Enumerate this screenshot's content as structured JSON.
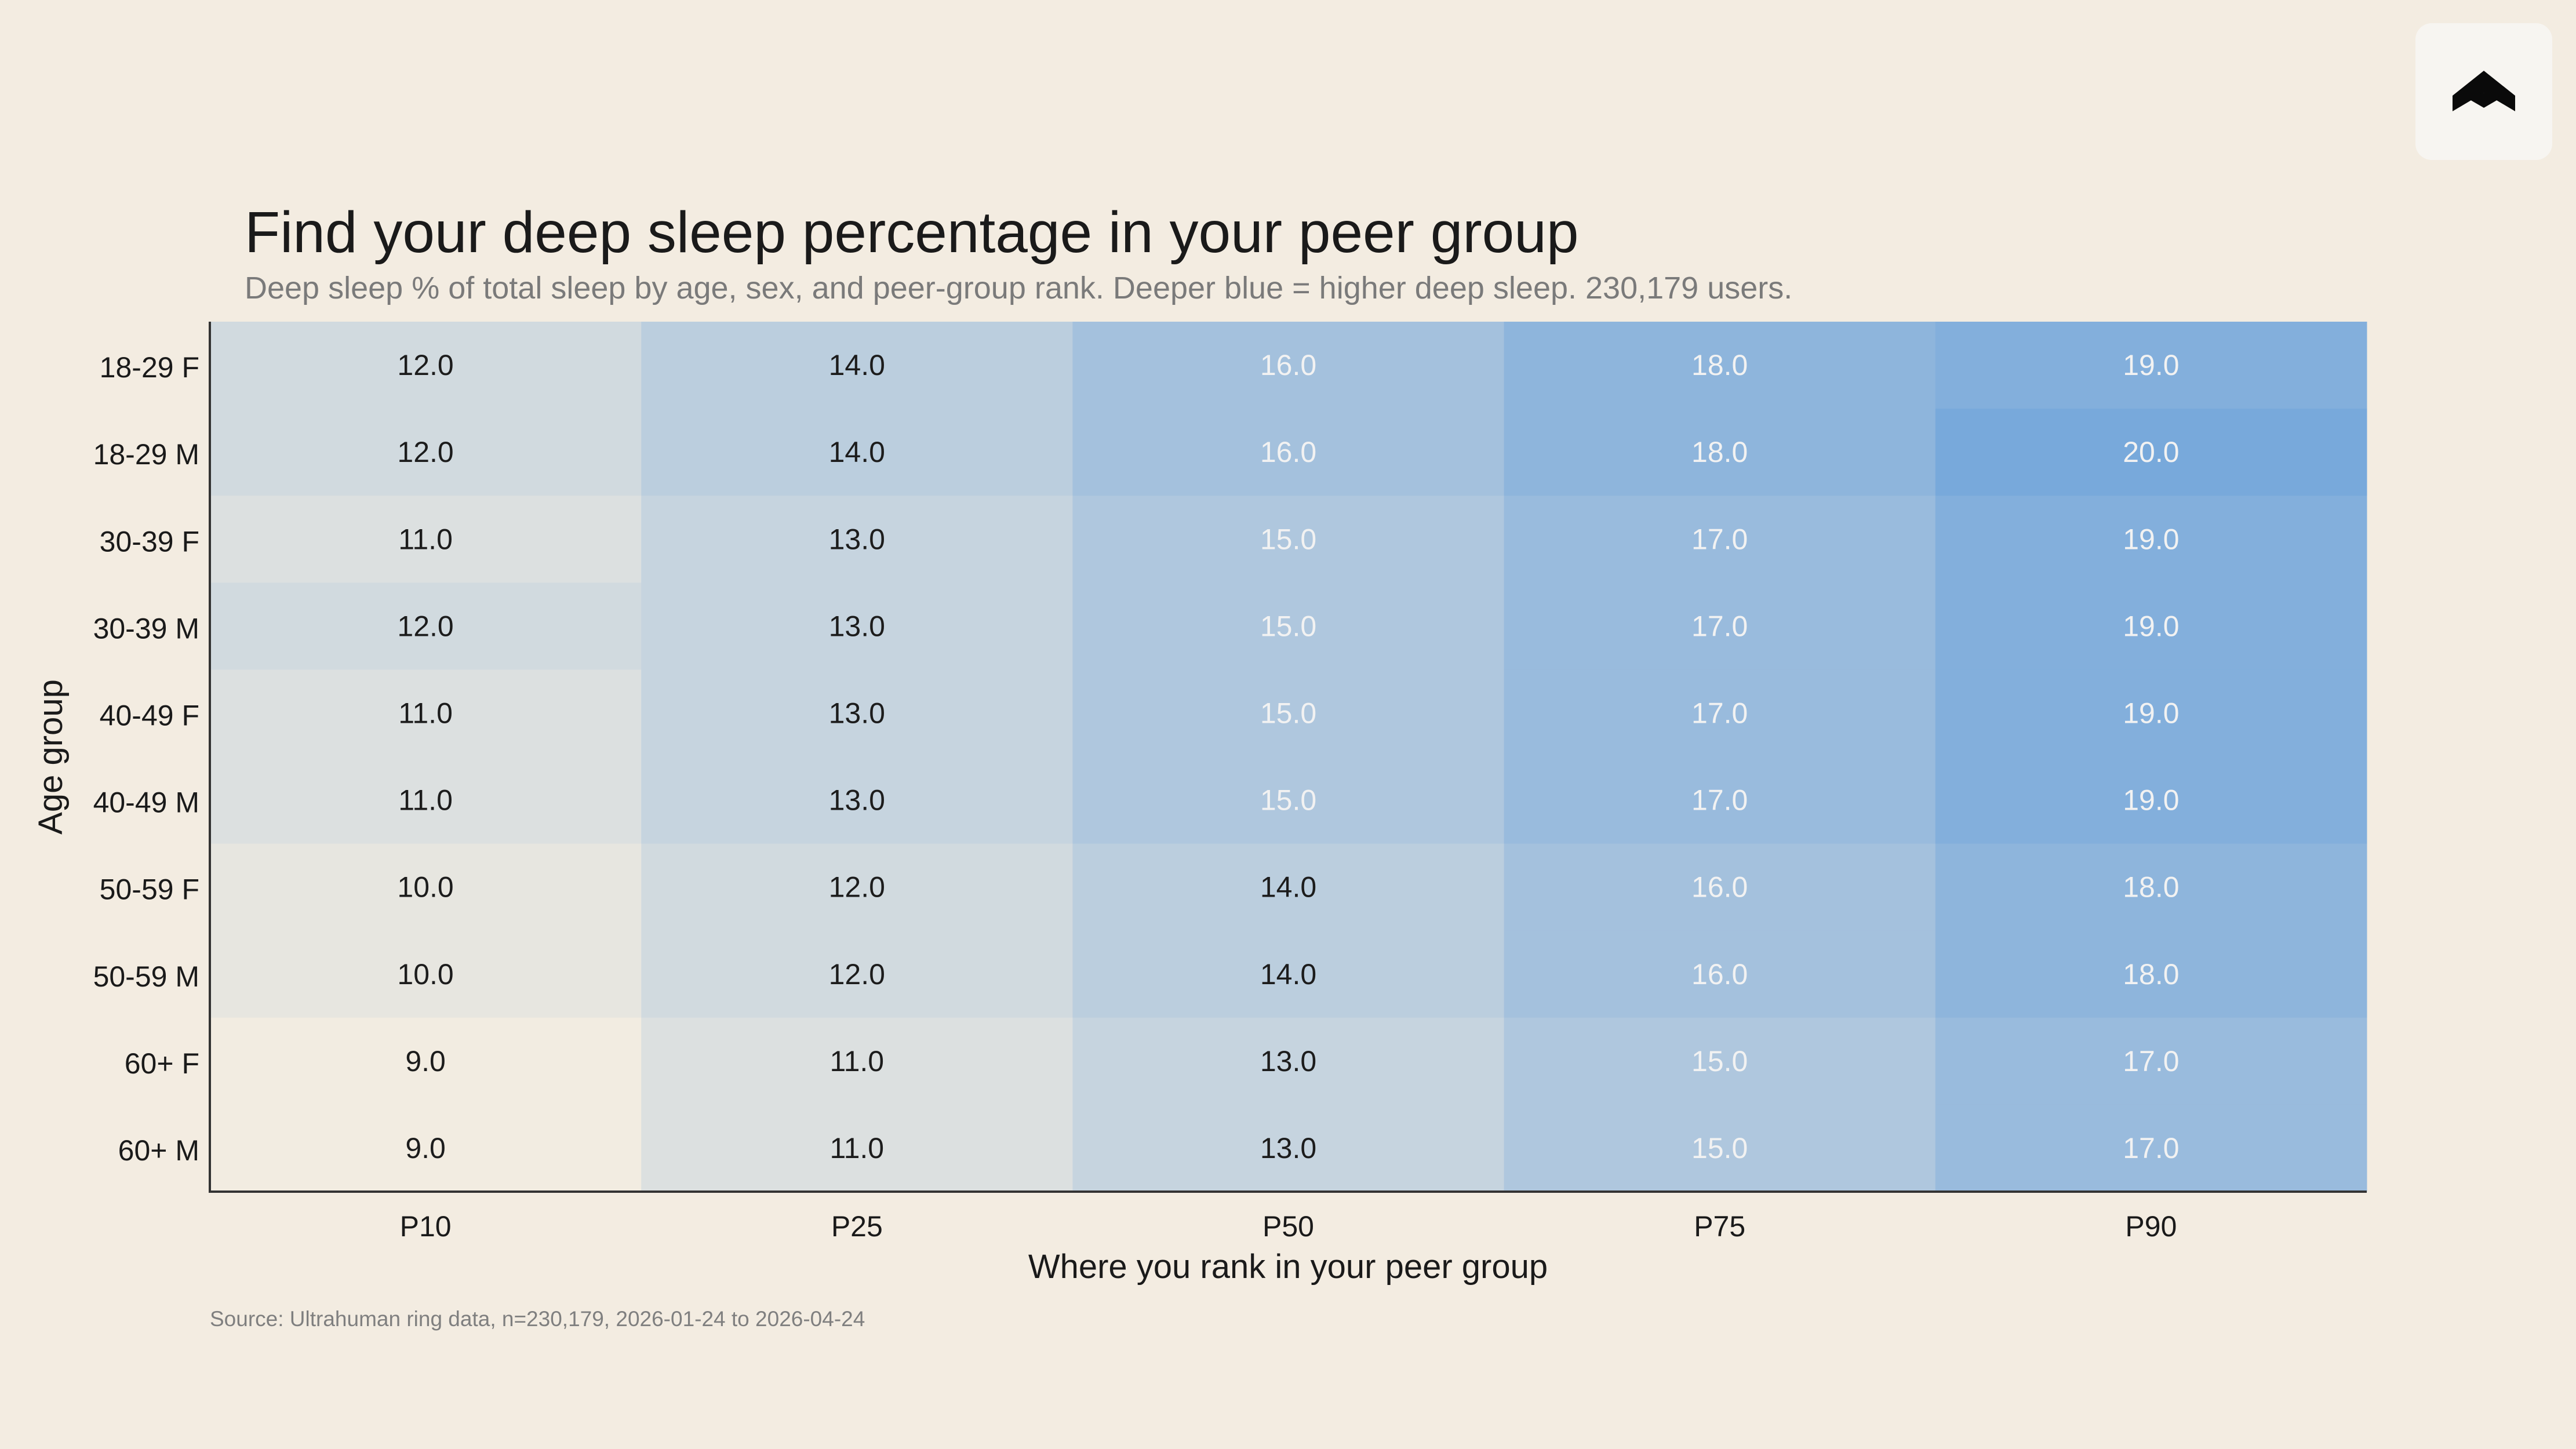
{
  "logo": {
    "icon": "ultrahuman-logo-icon"
  },
  "chart_data": {
    "type": "heatmap",
    "title": "Find your deep sleep percentage in your peer group",
    "subtitle": "Deep sleep % of total sleep by age, sex, and peer-group rank. Deeper blue = higher deep sleep. 230,179 users.",
    "xlabel": "Where you rank in your peer group",
    "ylabel": "Age group",
    "x_categories": [
      "P10",
      "P25",
      "P50",
      "P75",
      "P90"
    ],
    "y_categories": [
      "18-29 F",
      "18-29 M",
      "30-39 F",
      "30-39 M",
      "40-49 F",
      "40-49 M",
      "50-59 F",
      "50-59 M",
      "60+ F",
      "60+ M"
    ],
    "values": [
      [
        12.0,
        14.0,
        16.0,
        18.0,
        19.0
      ],
      [
        12.0,
        14.0,
        16.0,
        18.0,
        20.0
      ],
      [
        11.0,
        13.0,
        15.0,
        17.0,
        19.0
      ],
      [
        12.0,
        13.0,
        15.0,
        17.0,
        19.0
      ],
      [
        11.0,
        13.0,
        15.0,
        17.0,
        19.0
      ],
      [
        11.0,
        13.0,
        15.0,
        17.0,
        19.0
      ],
      [
        10.0,
        12.0,
        14.0,
        16.0,
        18.0
      ],
      [
        10.0,
        12.0,
        14.0,
        16.0,
        18.0
      ],
      [
        9.0,
        11.0,
        13.0,
        15.0,
        17.0
      ],
      [
        9.0,
        11.0,
        13.0,
        15.0,
        17.0
      ]
    ],
    "value_range": [
      9.0,
      20.0
    ],
    "colors": {
      "low": "#f2ece1",
      "high": "#78a9db",
      "label_dark": "#1c1c1c",
      "label_light": "#f2f2f2",
      "axis": "#333333",
      "subtitle": "#7a7a7a",
      "source": "#7f7f7f"
    },
    "source": "Source: Ultrahuman ring data, n=230,179, 2026-01-24 to 2026-04-24"
  }
}
